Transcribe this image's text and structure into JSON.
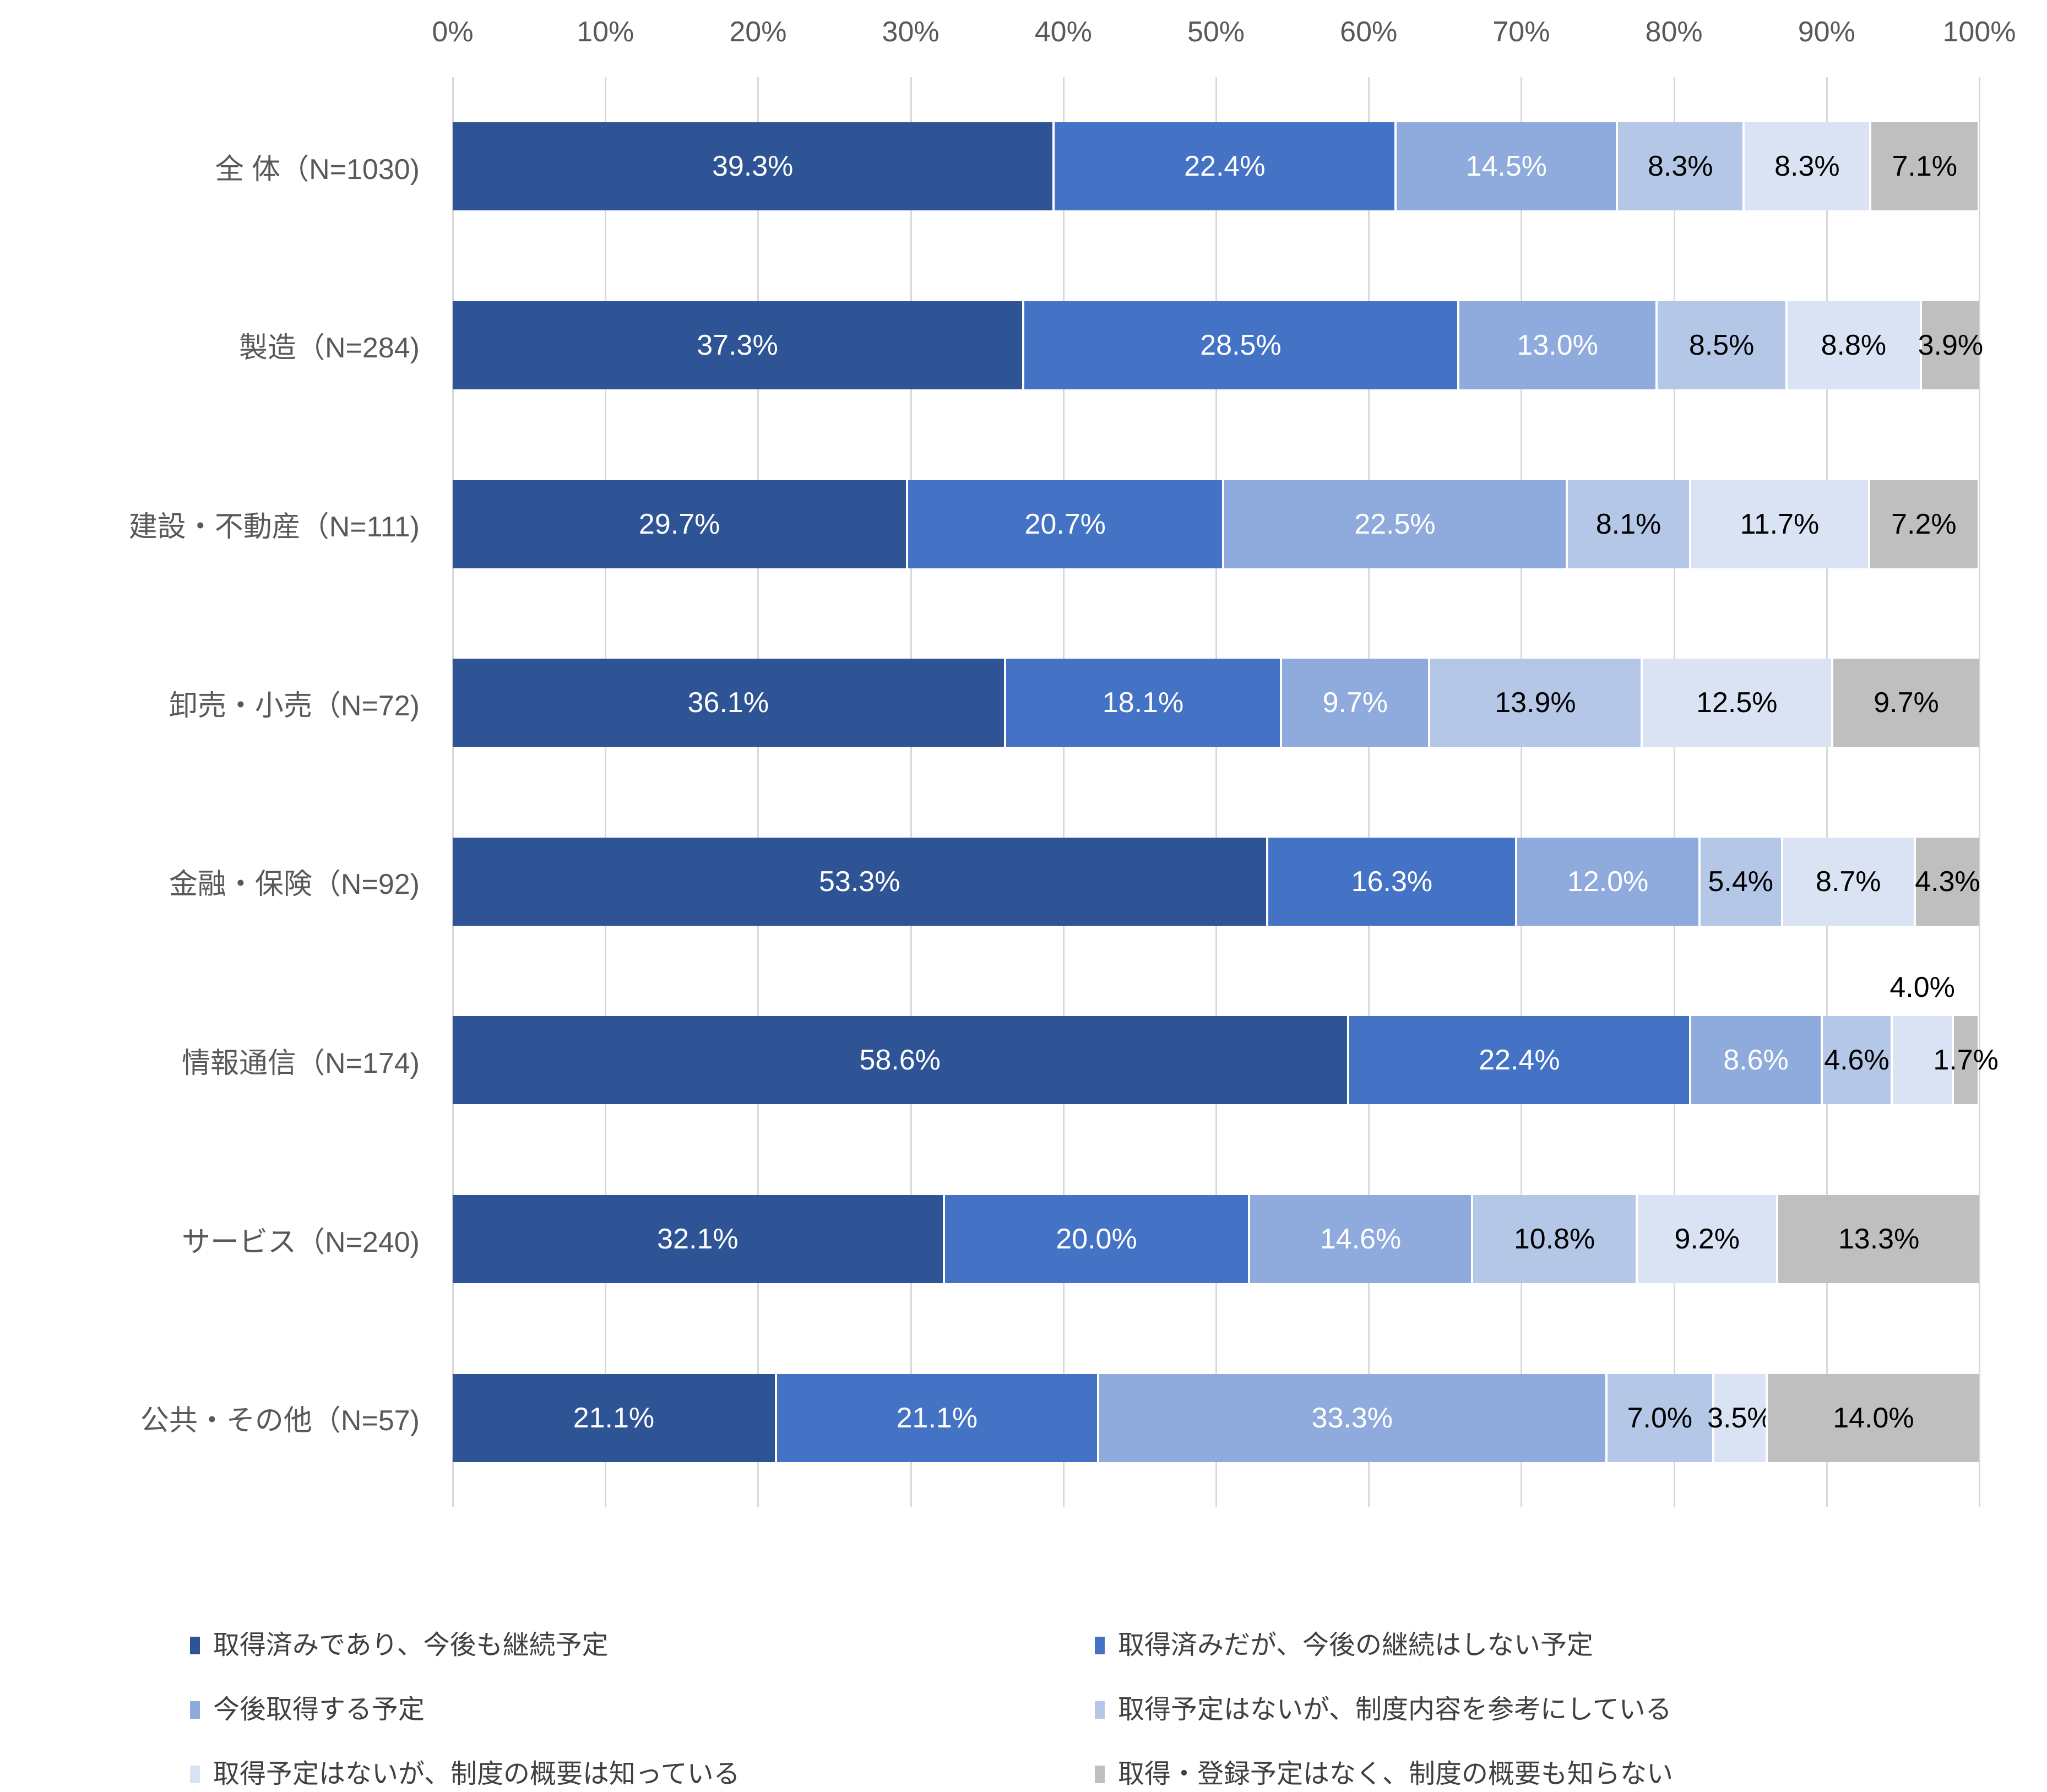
{
  "chart_data": {
    "type": "bar",
    "orientation": "horizontal",
    "stacked": true,
    "grid": true,
    "value_axis": {
      "position": "top",
      "min": 0,
      "max": 100,
      "tick_step": 10,
      "tick_labels": [
        "0%",
        "10%",
        "20%",
        "30%",
        "40%",
        "50%",
        "60%",
        "70%",
        "80%",
        "90%",
        "100%"
      ]
    },
    "categories": [
      "全 体（N=1030)",
      "製造（N=284)",
      "建設・不動産（N=111)",
      "卸売・小売（N=72)",
      "金融・保険（N=92)",
      "情報通信（N=174)",
      "サービス（N=240)",
      "公共・その他（N=57)"
    ],
    "series": [
      {
        "name": "取得済みであり、今後も継続予定",
        "color": "#2F5496",
        "label_color": "#FFFFFF",
        "values": [
          39.3,
          37.3,
          29.7,
          36.1,
          53.3,
          58.6,
          32.1,
          21.1
        ]
      },
      {
        "name": "取得済みだが、今後の継続はしない予定",
        "color": "#4472C4",
        "label_color": "#FFFFFF",
        "values": [
          22.4,
          28.5,
          20.7,
          18.1,
          16.3,
          22.4,
          20.0,
          21.1
        ]
      },
      {
        "name": "今後取得する予定",
        "color": "#8FAADC",
        "label_color": "#FFFFFF",
        "values": [
          14.5,
          13.0,
          22.5,
          9.7,
          12.0,
          8.6,
          14.6,
          33.3
        ]
      },
      {
        "name": "取得予定はないが、制度内容を参考にしている",
        "color": "#B4C7E7",
        "label_color": "#000000",
        "values": [
          8.3,
          8.5,
          8.1,
          13.9,
          5.4,
          4.6,
          10.8,
          7.0
        ]
      },
      {
        "name": "取得予定はないが、制度の概要は知っている",
        "color": "#DAE3F3",
        "label_color": "#000000",
        "values": [
          8.3,
          8.8,
          11.7,
          12.5,
          8.7,
          4.0,
          9.2,
          3.5
        ]
      },
      {
        "name": "取得・登録予定はなく、制度の概要も知らない",
        "color": "#BFBFBF",
        "label_color": "#000000",
        "values": [
          7.1,
          3.9,
          7.2,
          9.7,
          4.3,
          1.7,
          13.3,
          14.0
        ]
      }
    ],
    "data_label_format": "0.0%",
    "annotations": [
      {
        "category_index": 5,
        "series_index": 4,
        "placement": "above",
        "label": "4.0%"
      }
    ],
    "legend_position": "bottom",
    "legend_columns": [
      [
        0,
        2,
        4
      ],
      [
        1,
        3,
        5
      ]
    ]
  },
  "style": {
    "gridline_color": "#D9D9D9",
    "axis_label_color": "#595959",
    "category_label_color": "#595959",
    "legend_text_color": "#404040",
    "background": "#FFFFFF",
    "segment_separator_color": "#FFFFFF"
  }
}
